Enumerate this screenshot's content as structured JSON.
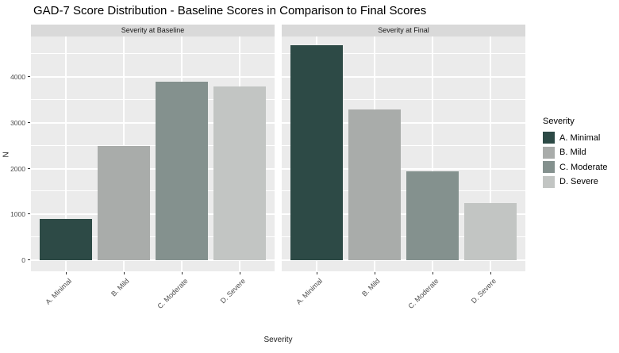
{
  "title": "GAD-7 Score Distribution - Baseline Scores in Comparison to Final Scores",
  "legend": {
    "title": "Severity",
    "items": [
      {
        "label": "A. Minimal",
        "color": "#2d4a46"
      },
      {
        "label": "B. Mild",
        "color": "#a9acaa"
      },
      {
        "label": "C. Moderate",
        "color": "#84918e"
      },
      {
        "label": "D. Severe",
        "color": "#c2c5c3"
      }
    ]
  },
  "chart_data": {
    "type": "bar",
    "title": "GAD-7 Score Distribution - Baseline Scores in Comparison to Final Scores",
    "xlabel": "Severity",
    "ylabel": "N",
    "categories": [
      "A. Minimal",
      "B. Mild",
      "C. Moderate",
      "D. Severe"
    ],
    "facets": [
      {
        "label": "Severity at Baseline",
        "values": [
          900,
          2500,
          3900,
          3800
        ]
      },
      {
        "label": "Severity at Final",
        "values": [
          4700,
          3300,
          1950,
          1250
        ]
      }
    ],
    "bar_colors": [
      "#2d4a46",
      "#a9acaa",
      "#84918e",
      "#c2c5c3"
    ],
    "yticks": [
      0,
      1000,
      2000,
      3000,
      4000
    ],
    "minor_yticks": [
      500,
      1500,
      2500,
      3500,
      4500
    ],
    "ylim": [
      -240,
      4890
    ],
    "grid": true,
    "legend_position": "right",
    "colors": {
      "panel_bg": "#ebebeb",
      "strip_bg": "#d9d9d9",
      "grid": "#ffffff"
    }
  }
}
